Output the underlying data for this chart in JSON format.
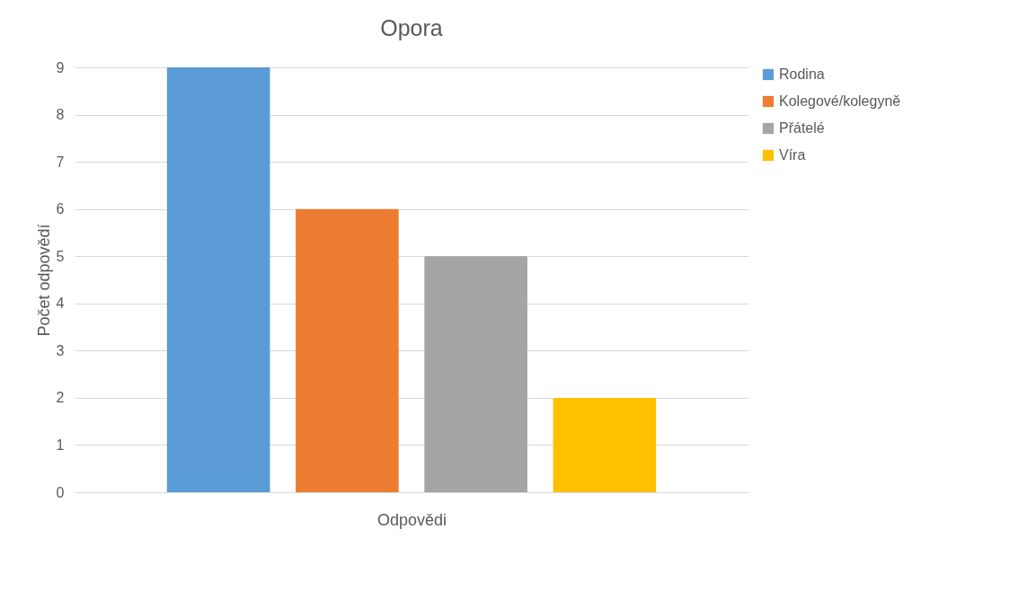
{
  "chart_data": {
    "type": "bar",
    "title": "Opora",
    "xlabel": "Odpovědi",
    "ylabel": "Počet odpovědí",
    "categories": [
      null
    ],
    "series": [
      {
        "name": "Rodina",
        "color": "#5b9bd5",
        "values": [
          9
        ]
      },
      {
        "name": "Kolegové/kolegyně",
        "color": "#ed7d31",
        "values": [
          6
        ]
      },
      {
        "name": "Přátelé",
        "color": "#a5a5a5",
        "values": [
          5
        ]
      },
      {
        "name": "Víra",
        "color": "#ffc000",
        "values": [
          2
        ]
      }
    ],
    "ylim": [
      0,
      9
    ],
    "yticks": [
      0,
      1,
      2,
      3,
      4,
      5,
      6,
      7,
      8,
      9
    ],
    "grid": "y",
    "legend": "right"
  }
}
